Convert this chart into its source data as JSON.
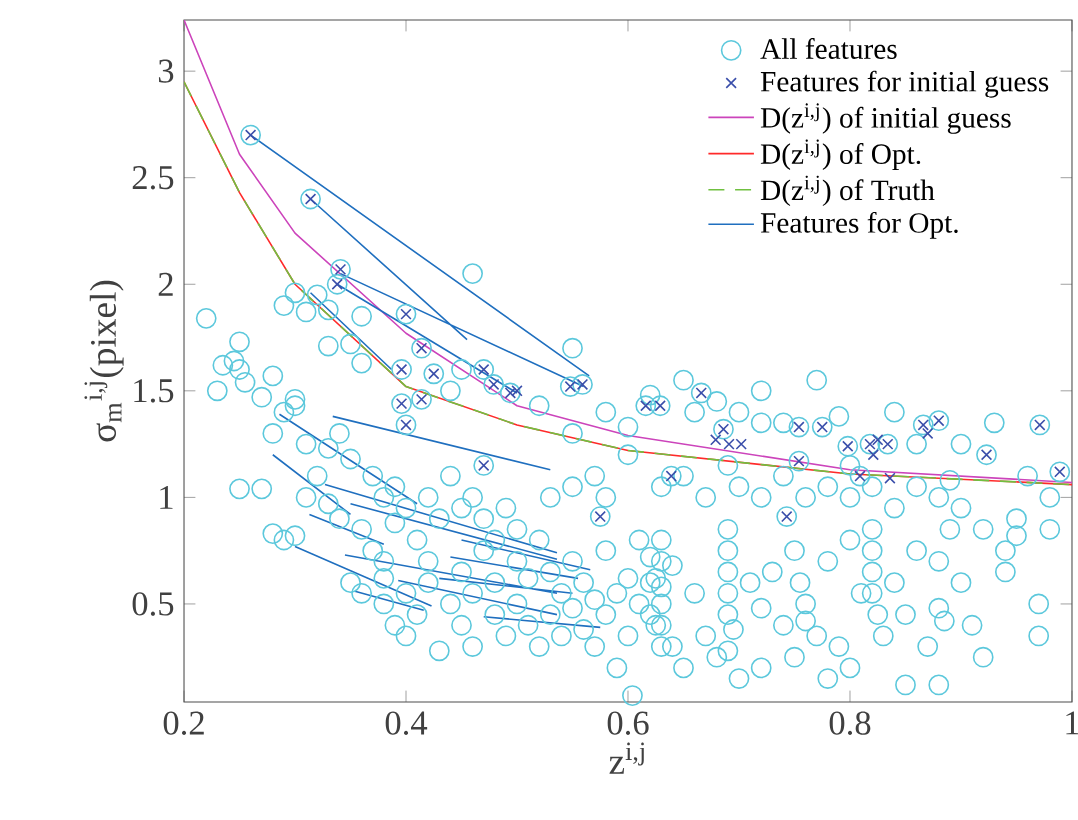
{
  "chart_data": {
    "type": "scatter",
    "xlabel": "z$^{i,j}$",
    "ylabel": "σ$_{m}$$^{i,j}$(pixel)",
    "xlim": [
      0.2,
      1.0
    ],
    "ylim": [
      0.04,
      3.24
    ],
    "xticks": [
      0.2,
      0.4,
      0.6,
      0.8,
      {
        "value": 1.0,
        "label": "1"
      }
    ],
    "yticks": [
      0.5,
      {
        "value": 1.0,
        "label": "1"
      },
      1.5,
      {
        "value": 2.0,
        "label": "2"
      },
      2.5,
      {
        "value": 3.0,
        "label": "3"
      }
    ],
    "grid": false,
    "legend": "top right",
    "series": [
      {
        "name": "All features",
        "marker": "circle",
        "color": "#5cc8dc",
        "x": [
          0.22,
          0.23,
          0.235,
          0.245,
          0.25,
          0.25,
          0.255,
          0.27,
          0.28,
          0.28,
          0.29,
          0.3,
          0.31,
          0.32,
          0.33,
          0.33,
          0.35,
          0.36,
          0.36,
          0.29,
          0.3,
          0.3,
          0.31,
          0.25,
          0.27,
          0.28,
          0.29,
          0.3,
          0.31,
          0.32,
          0.33,
          0.34,
          0.35,
          0.37,
          0.38,
          0.39,
          0.33,
          0.34,
          0.36,
          0.37,
          0.38,
          0.39,
          0.4,
          0.41,
          0.42,
          0.42,
          0.43,
          0.44,
          0.45,
          0.46,
          0.47,
          0.48,
          0.49,
          0.5,
          0.35,
          0.36,
          0.38,
          0.38,
          0.39,
          0.4,
          0.4,
          0.41,
          0.42,
          0.43,
          0.44,
          0.45,
          0.45,
          0.46,
          0.46,
          0.47,
          0.48,
          0.48,
          0.49,
          0.5,
          0.5,
          0.51,
          0.51,
          0.52,
          0.52,
          0.53,
          0.53,
          0.54,
          0.54,
          0.55,
          0.55,
          0.56,
          0.56,
          0.57,
          0.57,
          0.58,
          0.58,
          0.59,
          0.59,
          0.6,
          0.6,
          0.61,
          0.61,
          0.62,
          0.62,
          0.62,
          0.63,
          0.63,
          0.64,
          0.64,
          0.604,
          0.45,
          0.44,
          0.46,
          0.55,
          0.52,
          0.55,
          0.58,
          0.6,
          0.62,
          0.65,
          0.66,
          0.68,
          0.7,
          0.72,
          0.72,
          0.74,
          0.77,
          0.79,
          0.8,
          0.84,
          0.86,
          0.9,
          0.93,
          0.96,
          0.98,
          0.63,
          0.65,
          0.67,
          0.69,
          0.7,
          0.72,
          0.74,
          0.76,
          0.78,
          0.8,
          0.82,
          0.84,
          0.86,
          0.88,
          0.89,
          0.9,
          0.92,
          0.95,
          0.98,
          0.94,
          0.97,
          0.6,
          0.57,
          0.55,
          0.58,
          0.53,
          0.63,
          0.63,
          0.625,
          0.63,
          0.625,
          0.63,
          0.66,
          0.67,
          0.68,
          0.69,
          0.69,
          0.69,
          0.69,
          0.69,
          0.695,
          0.69,
          0.7,
          0.71,
          0.72,
          0.73,
          0.74,
          0.75,
          0.755,
          0.76,
          0.76,
          0.77,
          0.78,
          0.79,
          0.8,
          0.8,
          0.81,
          0.82,
          0.82,
          0.82,
          0.82,
          0.825,
          0.83,
          0.84,
          0.85,
          0.86,
          0.87,
          0.88,
          0.88,
          0.885,
          0.89,
          0.9,
          0.91,
          0.92,
          0.94,
          0.95,
          0.97,
          0.72,
          0.75,
          0.65,
          0.78,
          0.85,
          0.88,
          0.26,
          0.314,
          0.341,
          0.338,
          0.4,
          0.414,
          0.396,
          0.425,
          0.47,
          0.479,
          0.494,
          0.396,
          0.414,
          0.4,
          0.47,
          0.548,
          0.559,
          0.616,
          0.629,
          0.666,
          0.639,
          0.575,
          0.686,
          0.754,
          0.775,
          0.754,
          0.743,
          0.798,
          0.818,
          0.834,
          0.809,
          0.866,
          0.88,
          0.923,
          0.971,
          0.989
        ],
        "values": [
          1.84,
          1.5,
          1.62,
          1.64,
          1.6,
          1.73,
          1.54,
          1.47,
          1.3,
          1.57,
          1.9,
          1.96,
          1.87,
          1.95,
          1.71,
          1.88,
          1.72,
          1.63,
          1.85,
          1.4,
          1.43,
          1.46,
          1.25,
          1.04,
          1.04,
          0.83,
          0.8,
          0.82,
          1.0,
          1.1,
          1.23,
          1.3,
          1.18,
          1.1,
          1.0,
          1.05,
          0.97,
          0.9,
          0.85,
          0.75,
          0.7,
          0.88,
          0.95,
          0.8,
          0.7,
          1.0,
          0.9,
          1.1,
          0.95,
          1.0,
          0.9,
          0.8,
          0.95,
          0.85,
          0.6,
          0.55,
          0.62,
          0.5,
          0.4,
          0.55,
          0.35,
          0.45,
          0.6,
          0.28,
          0.5,
          0.4,
          0.65,
          0.3,
          0.55,
          0.75,
          0.45,
          0.6,
          0.35,
          0.5,
          0.7,
          0.4,
          0.62,
          0.3,
          0.8,
          0.45,
          0.65,
          0.55,
          0.35,
          0.7,
          0.48,
          0.6,
          0.38,
          0.52,
          0.3,
          0.45,
          0.75,
          0.55,
          0.2,
          0.35,
          0.62,
          0.5,
          0.8,
          0.72,
          0.6,
          0.45,
          0.4,
          0.58,
          0.3,
          0.68,
          0.07,
          1.6,
          1.5,
          2.05,
          1.7,
          1.43,
          1.3,
          1.4,
          1.33,
          1.48,
          1.55,
          1.4,
          1.45,
          1.4,
          1.35,
          1.5,
          1.35,
          1.55,
          1.38,
          1.15,
          1.4,
          1.25,
          1.25,
          1.35,
          1.1,
          1.0,
          1.05,
          1.1,
          1.0,
          1.15,
          1.05,
          1.0,
          1.1,
          1.0,
          1.05,
          1.0,
          1.05,
          0.95,
          1.05,
          1.0,
          1.08,
          0.95,
          0.85,
          0.82,
          0.85,
          0.65,
          0.5,
          1.2,
          1.1,
          1.05,
          1.0,
          1.0,
          0.8,
          0.7,
          0.62,
          0.5,
          0.4,
          0.3,
          0.55,
          0.35,
          0.25,
          0.85,
          0.75,
          0.65,
          0.55,
          0.45,
          0.38,
          0.28,
          0.15,
          0.6,
          0.48,
          0.65,
          0.4,
          0.75,
          0.6,
          0.5,
          0.42,
          0.35,
          0.7,
          0.3,
          0.8,
          0.2,
          0.55,
          0.85,
          0.75,
          0.65,
          0.55,
          0.45,
          0.35,
          0.6,
          0.45,
          0.75,
          0.3,
          0.7,
          0.48,
          0.42,
          0.85,
          0.6,
          0.4,
          0.25,
          0.75,
          0.9,
          0.35,
          0.2,
          0.25,
          0.2,
          0.15,
          0.12,
          0.12,
          2.7,
          2.4,
          2.07,
          2.0,
          1.86,
          1.7,
          1.6,
          1.58,
          1.6,
          1.53,
          1.49,
          1.44,
          1.46,
          1.34,
          1.15,
          1.52,
          1.53,
          1.43,
          1.43,
          1.49,
          1.1,
          0.91,
          1.32,
          1.33,
          1.33,
          1.17,
          0.91,
          1.24,
          1.25,
          1.25,
          1.1,
          1.34,
          1.36,
          1.2,
          1.34,
          1.12
        ]
      },
      {
        "name": "Features for initial guess",
        "marker": "cross",
        "color": "#3a4eaa",
        "x": [
          0.26,
          0.314,
          0.341,
          0.338,
          0.4,
          0.414,
          0.396,
          0.425,
          0.47,
          0.479,
          0.494,
          0.5,
          0.396,
          0.414,
          0.4,
          0.47,
          0.548,
          0.559,
          0.616,
          0.629,
          0.666,
          0.639,
          0.575,
          0.686,
          0.679,
          0.691,
          0.702,
          0.754,
          0.775,
          0.754,
          0.743,
          0.798,
          0.818,
          0.825,
          0.834,
          0.821,
          0.809,
          0.836,
          0.866,
          0.88,
          0.87,
          0.923,
          0.971,
          0.989
        ],
        "values": [
          2.7,
          2.4,
          2.07,
          2.0,
          1.86,
          1.7,
          1.6,
          1.58,
          1.6,
          1.53,
          1.49,
          1.5,
          1.44,
          1.46,
          1.34,
          1.15,
          1.52,
          1.53,
          1.43,
          1.43,
          1.49,
          1.1,
          0.91,
          1.32,
          1.27,
          1.25,
          1.25,
          1.33,
          1.33,
          1.17,
          0.91,
          1.24,
          1.25,
          1.27,
          1.25,
          1.2,
          1.1,
          1.09,
          1.34,
          1.36,
          1.3,
          1.2,
          1.34,
          1.12
        ]
      },
      {
        "name": "D(z$^{i,j}$) of initial guess",
        "type": "line",
        "marker": "none",
        "line_style": "solid",
        "color": "#cc44bb",
        "x": [
          0.2,
          0.25,
          0.3,
          0.4,
          0.5,
          0.6,
          0.8,
          1.0
        ],
        "values": [
          3.24,
          2.61,
          2.24,
          1.77,
          1.43,
          1.29,
          1.13,
          1.07
        ]
      },
      {
        "name": "D(z$^{i,j}$) of Opt.",
        "type": "line",
        "marker": "none",
        "line_style": "solid",
        "color": "#ff2a2a",
        "x": [
          0.2,
          0.25,
          0.3,
          0.4,
          0.5,
          0.6,
          0.8,
          1.0
        ],
        "values": [
          2.95,
          2.43,
          2.0,
          1.52,
          1.34,
          1.22,
          1.11,
          1.06
        ]
      },
      {
        "name": "D(z$^{i,j}$) of Truth",
        "type": "line",
        "marker": "none",
        "line_style": "dashed",
        "color": "#70c040",
        "x": [
          0.2,
          0.25,
          0.3,
          0.4,
          0.5,
          0.6,
          0.8,
          1.0
        ],
        "values": [
          2.95,
          2.43,
          2.0,
          1.52,
          1.34,
          1.22,
          1.11,
          1.06
        ]
      },
      {
        "name": "Features for Opt.",
        "type": "line",
        "marker": "none",
        "line_style": "solid",
        "color": "#1f6fbf",
        "x": [
          0.26,
          0.565,
          null,
          0.314,
          0.455,
          null,
          0.341,
          0.56,
          null,
          0.338,
          0.5,
          null,
          0.314,
          0.387,
          null,
          0.334,
          0.53,
          null,
          0.286,
          0.41,
          null,
          0.28,
          0.35,
          null,
          0.327,
          0.536,
          null,
          0.35,
          0.536,
          null,
          0.313,
          0.38,
          null,
          0.3,
          0.423,
          null,
          0.345,
          0.536,
          null,
          0.354,
          0.416,
          null,
          0.393,
          0.536,
          null,
          0.45,
          0.566,
          null,
          0.43,
          0.55,
          null,
          0.47,
          0.575,
          null,
          0.44,
          0.555
        ],
        "values": [
          2.7,
          1.57,
          null,
          2.4,
          1.74,
          null,
          2.05,
          1.52,
          null,
          2.0,
          1.49,
          null,
          1.96,
          1.6,
          null,
          1.38,
          1.13,
          null,
          1.39,
          0.97,
          null,
          1.2,
          0.92,
          null,
          1.06,
          0.74,
          null,
          0.97,
          0.71,
          null,
          0.92,
          0.78,
          null,
          0.77,
          0.49,
          null,
          0.73,
          0.55,
          null,
          0.56,
          0.47,
          null,
          0.61,
          0.45,
          null,
          0.8,
          0.66,
          null,
          0.62,
          0.55,
          null,
          0.44,
          0.39,
          null,
          0.72,
          0.62
        ]
      }
    ]
  }
}
